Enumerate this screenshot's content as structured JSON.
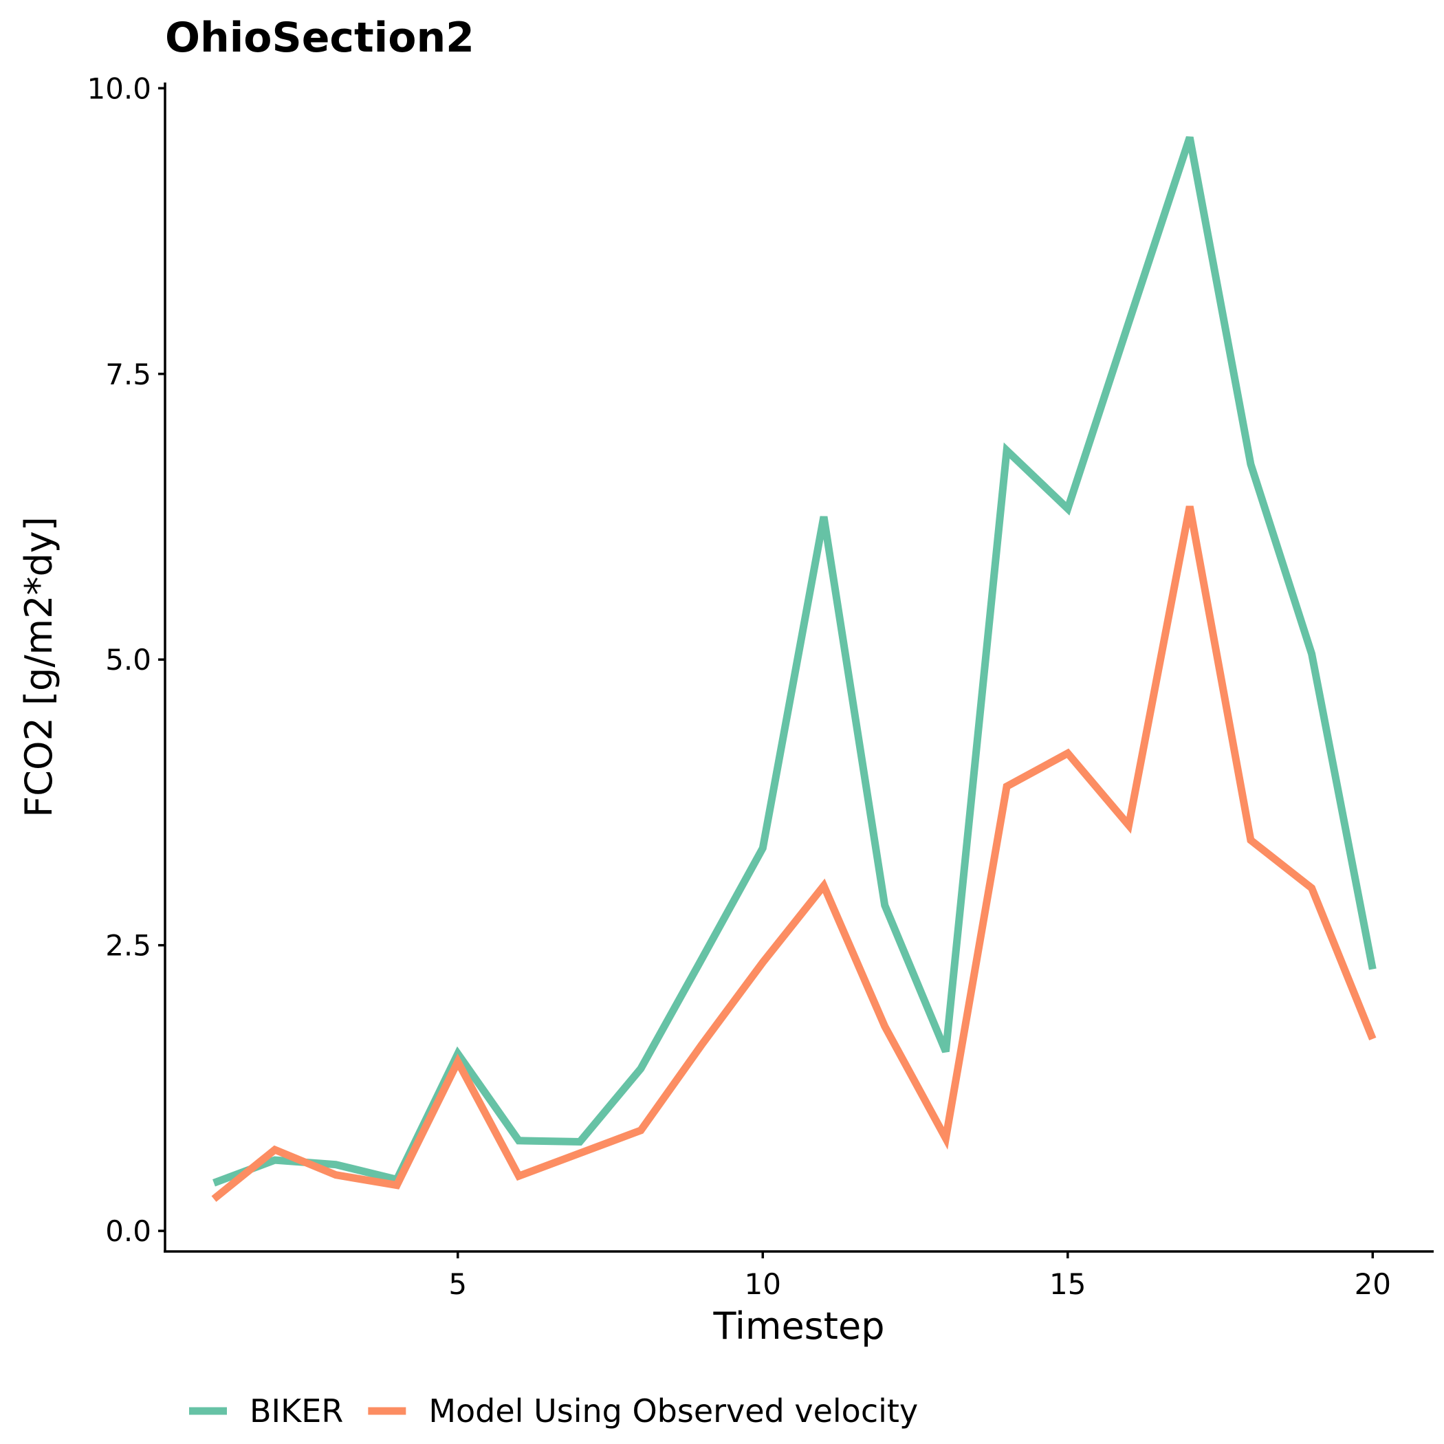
{
  "chart_data": {
    "type": "line",
    "title": "OhioSection2",
    "xlabel": "Timestep",
    "ylabel": "FCO2 [g/m2*dy]",
    "xlim": [
      0.2,
      21
    ],
    "ylim": [
      -0.18,
      10.05
    ],
    "x_ticks": [
      5,
      10,
      15,
      20
    ],
    "x_tick_labels": [
      "5",
      "10",
      "15",
      "20"
    ],
    "y_ticks": [
      0,
      2.5,
      5,
      7.5,
      10
    ],
    "y_tick_labels": [
      "0.0",
      "2.5",
      "5.0",
      "7.5",
      "10.0"
    ],
    "grid": false,
    "legend_position": "bottom-left",
    "x": [
      1,
      2,
      3,
      4,
      5,
      6,
      7,
      8,
      9,
      10,
      11,
      12,
      13,
      14,
      15,
      16,
      17,
      18,
      19,
      20
    ],
    "series": [
      {
        "name": "BIKER",
        "color": "#66c2a5",
        "values": [
          0.42,
          0.62,
          0.58,
          0.45,
          1.55,
          0.79,
          0.78,
          1.42,
          2.38,
          3.35,
          6.25,
          2.85,
          1.57,
          6.83,
          6.32,
          7.95,
          9.57,
          6.71,
          5.05,
          2.29
        ]
      },
      {
        "name": "Model Using Observed velocity",
        "color": "#fc8d62",
        "values": [
          0.28,
          0.71,
          0.49,
          0.4,
          1.48,
          0.48,
          0.68,
          0.88,
          1.63,
          2.35,
          3.02,
          1.79,
          0.81,
          3.89,
          4.18,
          3.55,
          6.34,
          3.42,
          3.0,
          1.68
        ]
      }
    ]
  }
}
